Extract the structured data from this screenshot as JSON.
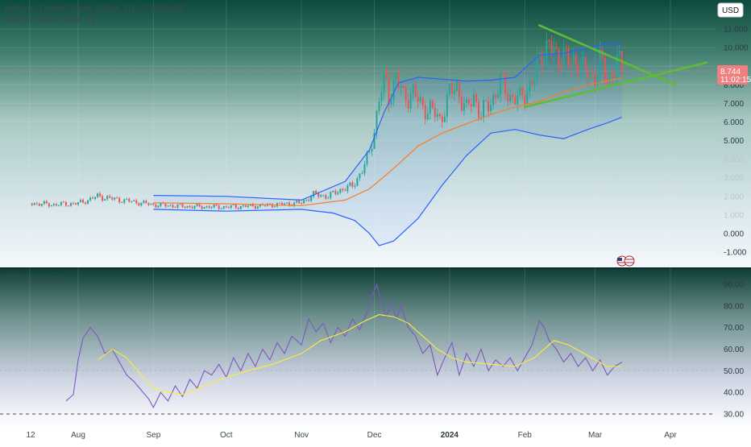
{
  "header": {
    "symbol_title": "Helium / United States Dollar, 1D, COINBASE",
    "indicator_bb": "BB (50, SMA, close, 2)",
    "indicator_rsi": "RSI (14, close)"
  },
  "currency_button": "USD",
  "price_label": {
    "value": "8.744",
    "countdown": "11:02:15",
    "color": "#f08080"
  },
  "colors": {
    "candle_up": "#26a69a",
    "candle_down": "#ef5350",
    "bb_basis": "#ff7a21",
    "bb_bands": "#2962ff",
    "rsi_line": "#7e57c2",
    "rsi_ma": "#ffeb3b",
    "triangle": "#5dbb3a"
  },
  "icons": {
    "flag": "us-flag-icon"
  },
  "chart_data": [
    {
      "type": "candlestick",
      "name": "price",
      "y_ticks": [
        "11.000",
        "10.000",
        "9.000",
        "8.000",
        "7.000",
        "6.000",
        "5.000",
        "4.000",
        "3.000",
        "2.000",
        "1.000",
        "0.000",
        "-1.000"
      ],
      "ylim": [
        -1.3,
        11.6
      ],
      "x_ticks": [
        "12",
        "Aug",
        "Sep",
        "Oct",
        "Nov",
        "Dec",
        "2024",
        "Feb",
        "Mar",
        "Apr"
      ],
      "x_tick_days": [
        -20,
        0,
        31,
        61,
        92,
        122,
        153,
        184,
        213,
        244
      ],
      "last_price": 8.744,
      "series_close": [
        {
          "day": -19,
          "close": 1.62
        },
        {
          "day": -10,
          "close": 1.55
        },
        {
          "day": 0,
          "close": 1.62
        },
        {
          "day": 5,
          "close": 1.85
        },
        {
          "day": 8,
          "close": 2.0
        },
        {
          "day": 15,
          "close": 1.85
        },
        {
          "day": 22,
          "close": 1.72
        },
        {
          "day": 31,
          "close": 1.55
        },
        {
          "day": 45,
          "close": 1.45
        },
        {
          "day": 61,
          "close": 1.42
        },
        {
          "day": 75,
          "close": 1.5
        },
        {
          "day": 92,
          "close": 1.65
        },
        {
          "day": 97,
          "close": 2.1
        },
        {
          "day": 103,
          "close": 2.0
        },
        {
          "day": 108,
          "close": 2.35
        },
        {
          "day": 113,
          "close": 2.55
        },
        {
          "day": 117,
          "close": 3.4
        },
        {
          "day": 120,
          "close": 4.3
        },
        {
          "day": 122,
          "close": 5.6
        },
        {
          "day": 124,
          "close": 7.2
        },
        {
          "day": 126,
          "close": 8.3
        },
        {
          "day": 128,
          "close": 7.4
        },
        {
          "day": 131,
          "close": 8.4
        },
        {
          "day": 134,
          "close": 7.3
        },
        {
          "day": 138,
          "close": 7.6
        },
        {
          "day": 141,
          "close": 6.9
        },
        {
          "day": 145,
          "close": 6.7
        },
        {
          "day": 149,
          "close": 6.1
        },
        {
          "day": 153,
          "close": 7.5
        },
        {
          "day": 156,
          "close": 7.9
        },
        {
          "day": 160,
          "close": 6.6
        },
        {
          "day": 163,
          "close": 7.4
        },
        {
          "day": 166,
          "close": 6.4
        },
        {
          "day": 170,
          "close": 7.1
        },
        {
          "day": 174,
          "close": 8.1
        },
        {
          "day": 178,
          "close": 7.4
        },
        {
          "day": 182,
          "close": 7.2
        },
        {
          "day": 184,
          "close": 7.6
        },
        {
          "day": 188,
          "close": 8.4
        },
        {
          "day": 191,
          "close": 9.8
        },
        {
          "day": 194,
          "close": 10.2
        },
        {
          "day": 197,
          "close": 9.3
        },
        {
          "day": 200,
          "close": 9.8
        },
        {
          "day": 203,
          "close": 8.8
        },
        {
          "day": 206,
          "close": 9.4
        },
        {
          "day": 209,
          "close": 8.6
        },
        {
          "day": 212,
          "close": 8.4
        },
        {
          "day": 215,
          "close": 9.3
        },
        {
          "day": 218,
          "close": 8.1
        },
        {
          "day": 220,
          "close": 8.9
        },
        {
          "day": 222,
          "close": 9.3
        },
        {
          "day": 224,
          "close": 8.744
        }
      ],
      "bb_basis": [
        {
          "day": 31,
          "v": 1.65
        },
        {
          "day": 61,
          "v": 1.6
        },
        {
          "day": 92,
          "v": 1.5
        },
        {
          "day": 110,
          "v": 1.8
        },
        {
          "day": 120,
          "v": 2.4
        },
        {
          "day": 130,
          "v": 3.5
        },
        {
          "day": 140,
          "v": 4.7
        },
        {
          "day": 150,
          "v": 5.4
        },
        {
          "day": 160,
          "v": 5.9
        },
        {
          "day": 170,
          "v": 6.4
        },
        {
          "day": 180,
          "v": 6.8
        },
        {
          "day": 190,
          "v": 7.1
        },
        {
          "day": 200,
          "v": 7.6
        },
        {
          "day": 210,
          "v": 8.0
        },
        {
          "day": 218,
          "v": 8.2
        },
        {
          "day": 224,
          "v": 8.35
        }
      ],
      "bb_upper": [
        {
          "day": 31,
          "v": 2.05
        },
        {
          "day": 61,
          "v": 2.0
        },
        {
          "day": 92,
          "v": 1.8
        },
        {
          "day": 110,
          "v": 2.8
        },
        {
          "day": 120,
          "v": 4.5
        },
        {
          "day": 126,
          "v": 6.5
        },
        {
          "day": 132,
          "v": 8.1
        },
        {
          "day": 140,
          "v": 8.4
        },
        {
          "day": 150,
          "v": 8.3
        },
        {
          "day": 160,
          "v": 8.2
        },
        {
          "day": 170,
          "v": 8.25
        },
        {
          "day": 180,
          "v": 8.4
        },
        {
          "day": 190,
          "v": 9.6
        },
        {
          "day": 200,
          "v": 9.7
        },
        {
          "day": 210,
          "v": 10.0
        },
        {
          "day": 218,
          "v": 10.2
        },
        {
          "day": 224,
          "v": 10.3
        }
      ],
      "bb_lower": [
        {
          "day": 31,
          "v": 1.3
        },
        {
          "day": 61,
          "v": 1.2
        },
        {
          "day": 92,
          "v": 1.3
        },
        {
          "day": 105,
          "v": 1.1
        },
        {
          "day": 114,
          "v": 0.7
        },
        {
          "day": 120,
          "v": 0.0
        },
        {
          "day": 124,
          "v": -0.65
        },
        {
          "day": 130,
          "v": -0.4
        },
        {
          "day": 140,
          "v": 0.8
        },
        {
          "day": 150,
          "v": 2.6
        },
        {
          "day": 160,
          "v": 4.2
        },
        {
          "day": 170,
          "v": 5.4
        },
        {
          "day": 180,
          "v": 5.6
        },
        {
          "day": 190,
          "v": 5.3
        },
        {
          "day": 200,
          "v": 5.1
        },
        {
          "day": 210,
          "v": 5.6
        },
        {
          "day": 218,
          "v": 5.95
        },
        {
          "day": 224,
          "v": 6.25
        }
      ],
      "drawing_triangle": [
        {
          "from": {
            "day": 190,
            "v": 11.2
          },
          "to": {
            "day": 246,
            "v": 8.0
          }
        },
        {
          "from": {
            "day": 184,
            "v": 6.8
          },
          "to": {
            "day": 259,
            "v": 9.2
          }
        }
      ]
    },
    {
      "type": "line",
      "name": "rsi",
      "y_ticks": [
        "90.00",
        "80.00",
        "70.00",
        "60.00",
        "50.00",
        "40.00",
        "30.00"
      ],
      "ylim": [
        28,
        93
      ],
      "rsi": [
        {
          "day": -5,
          "v": 36
        },
        {
          "day": -2,
          "v": 39
        },
        {
          "day": 0,
          "v": 55
        },
        {
          "day": 2,
          "v": 65
        },
        {
          "day": 5,
          "v": 70
        },
        {
          "day": 8,
          "v": 66
        },
        {
          "day": 11,
          "v": 58
        },
        {
          "day": 14,
          "v": 60
        },
        {
          "day": 17,
          "v": 54
        },
        {
          "day": 20,
          "v": 48
        },
        {
          "day": 23,
          "v": 45
        },
        {
          "day": 26,
          "v": 41
        },
        {
          "day": 29,
          "v": 37
        },
        {
          "day": 31,
          "v": 33
        },
        {
          "day": 34,
          "v": 40
        },
        {
          "day": 37,
          "v": 36
        },
        {
          "day": 40,
          "v": 43
        },
        {
          "day": 43,
          "v": 38
        },
        {
          "day": 46,
          "v": 46
        },
        {
          "day": 49,
          "v": 42
        },
        {
          "day": 52,
          "v": 50
        },
        {
          "day": 55,
          "v": 48
        },
        {
          "day": 58,
          "v": 53
        },
        {
          "day": 61,
          "v": 47
        },
        {
          "day": 64,
          "v": 56
        },
        {
          "day": 67,
          "v": 50
        },
        {
          "day": 70,
          "v": 58
        },
        {
          "day": 73,
          "v": 52
        },
        {
          "day": 76,
          "v": 60
        },
        {
          "day": 79,
          "v": 55
        },
        {
          "day": 82,
          "v": 63
        },
        {
          "day": 85,
          "v": 58
        },
        {
          "day": 88,
          "v": 66
        },
        {
          "day": 92,
          "v": 62
        },
        {
          "day": 95,
          "v": 74
        },
        {
          "day": 98,
          "v": 68
        },
        {
          "day": 101,
          "v": 72
        },
        {
          "day": 104,
          "v": 63
        },
        {
          "day": 107,
          "v": 70
        },
        {
          "day": 110,
          "v": 66
        },
        {
          "day": 113,
          "v": 74
        },
        {
          "day": 116,
          "v": 69
        },
        {
          "day": 119,
          "v": 77
        },
        {
          "day": 121,
          "v": 84
        },
        {
          "day": 123,
          "v": 90
        },
        {
          "day": 125,
          "v": 81
        },
        {
          "day": 127,
          "v": 75
        },
        {
          "day": 129,
          "v": 82
        },
        {
          "day": 131,
          "v": 74
        },
        {
          "day": 133,
          "v": 80
        },
        {
          "day": 136,
          "v": 70
        },
        {
          "day": 139,
          "v": 66
        },
        {
          "day": 142,
          "v": 58
        },
        {
          "day": 145,
          "v": 62
        },
        {
          "day": 148,
          "v": 48
        },
        {
          "day": 151,
          "v": 56
        },
        {
          "day": 154,
          "v": 63
        },
        {
          "day": 157,
          "v": 48
        },
        {
          "day": 160,
          "v": 58
        },
        {
          "day": 163,
          "v": 52
        },
        {
          "day": 166,
          "v": 60
        },
        {
          "day": 169,
          "v": 50
        },
        {
          "day": 172,
          "v": 55
        },
        {
          "day": 175,
          "v": 52
        },
        {
          "day": 178,
          "v": 56
        },
        {
          "day": 181,
          "v": 50
        },
        {
          "day": 184,
          "v": 56
        },
        {
          "day": 187,
          "v": 62
        },
        {
          "day": 190,
          "v": 73
        },
        {
          "day": 192,
          "v": 70
        },
        {
          "day": 194,
          "v": 64
        },
        {
          "day": 197,
          "v": 60
        },
        {
          "day": 200,
          "v": 54
        },
        {
          "day": 203,
          "v": 58
        },
        {
          "day": 206,
          "v": 52
        },
        {
          "day": 209,
          "v": 56
        },
        {
          "day": 212,
          "v": 50
        },
        {
          "day": 215,
          "v": 55
        },
        {
          "day": 218,
          "v": 48
        },
        {
          "day": 221,
          "v": 52
        },
        {
          "day": 224,
          "v": 54
        }
      ],
      "rsi_ma": [
        {
          "day": 8,
          "v": 55
        },
        {
          "day": 14,
          "v": 60
        },
        {
          "day": 20,
          "v": 56
        },
        {
          "day": 26,
          "v": 48
        },
        {
          "day": 31,
          "v": 42
        },
        {
          "day": 37,
          "v": 40
        },
        {
          "day": 43,
          "v": 39
        },
        {
          "day": 50,
          "v": 42
        },
        {
          "day": 61,
          "v": 47
        },
        {
          "day": 70,
          "v": 50
        },
        {
          "day": 80,
          "v": 53
        },
        {
          "day": 92,
          "v": 58
        },
        {
          "day": 100,
          "v": 64
        },
        {
          "day": 110,
          "v": 68
        },
        {
          "day": 118,
          "v": 73
        },
        {
          "day": 124,
          "v": 76
        },
        {
          "day": 130,
          "v": 75
        },
        {
          "day": 136,
          "v": 72
        },
        {
          "day": 142,
          "v": 66
        },
        {
          "day": 148,
          "v": 60
        },
        {
          "day": 154,
          "v": 56
        },
        {
          "day": 160,
          "v": 54
        },
        {
          "day": 170,
          "v": 53
        },
        {
          "day": 180,
          "v": 52
        },
        {
          "day": 188,
          "v": 56
        },
        {
          "day": 196,
          "v": 64
        },
        {
          "day": 202,
          "v": 62
        },
        {
          "day": 210,
          "v": 57
        },
        {
          "day": 218,
          "v": 52
        },
        {
          "day": 224,
          "v": 52
        }
      ]
    }
  ]
}
